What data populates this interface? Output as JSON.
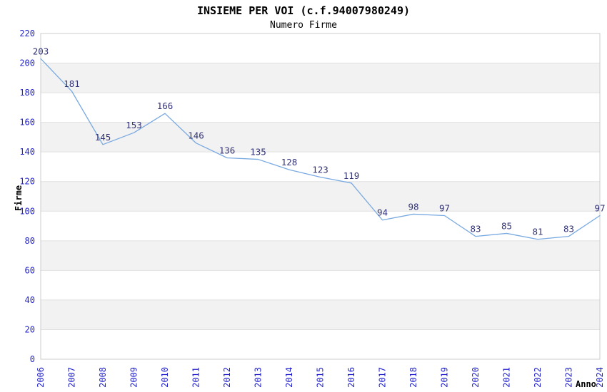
{
  "chart_data": {
    "type": "line",
    "title": "INSIEME PER VOI (c.f.94007980249)",
    "subtitle": "Numero Firme",
    "xlabel": "Anno",
    "ylabel": "Firme",
    "categories": [
      "2006",
      "2007",
      "2008",
      "2009",
      "2010",
      "2011",
      "2012",
      "2013",
      "2014",
      "2015",
      "2016",
      "2017",
      "2018",
      "2019",
      "2020",
      "2021",
      "2022",
      "2023",
      "2024"
    ],
    "values": [
      203,
      181,
      145,
      153,
      166,
      146,
      136,
      135,
      128,
      123,
      119,
      94,
      98,
      97,
      83,
      85,
      81,
      83,
      97
    ],
    "yticks": [
      0,
      20,
      40,
      60,
      80,
      100,
      120,
      140,
      160,
      180,
      200,
      220
    ],
    "ylim": [
      0,
      220
    ],
    "ytick_step": 20,
    "grid": true,
    "alternating_bands": true,
    "legend": "none",
    "point_labels_visible": true,
    "colors": {
      "line": "#79a9e1",
      "tick_label": "#2222cc",
      "value_label": "#333377",
      "band": "#f2f2f2",
      "gridline": "#e0e0e0",
      "plot_border": "#cccccc",
      "title": "#000000",
      "background": "#ffffff"
    }
  }
}
